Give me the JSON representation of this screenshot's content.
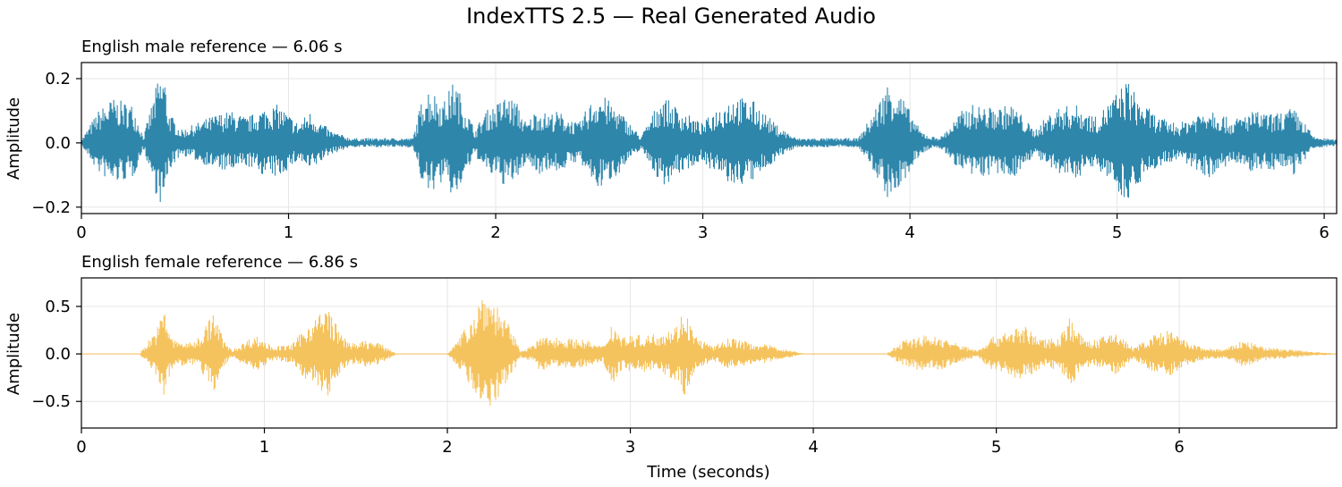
{
  "figure_title": "IndexTTS 2.5 — Real Generated Audio",
  "x_axis_label": "Time (seconds)",
  "chart_data": [
    {
      "type": "line",
      "title": "English male reference — 6.06 s",
      "ylabel": "Amplitude",
      "xlabel": "",
      "duration_s": 6.06,
      "xlim": [
        0,
        6.06
      ],
      "ylim": [
        -0.22,
        0.25
      ],
      "x_ticks": [
        0,
        1,
        2,
        3,
        4,
        5,
        6
      ],
      "x_tick_labels": [
        "0",
        "1",
        "2",
        "3",
        "4",
        "5",
        "6"
      ],
      "y_ticks": [
        0.2,
        0.0,
        -0.2
      ],
      "y_tick_labels": [
        "0.2",
        "0.0",
        "−0.2"
      ],
      "grid": true,
      "color": "#2e86ab",
      "envelope": {
        "time_s": [
          0.0,
          0.08,
          0.15,
          0.25,
          0.3,
          0.37,
          0.4,
          0.42,
          0.48,
          0.55,
          0.65,
          0.72,
          0.8,
          0.88,
          0.95,
          1.05,
          1.1,
          1.2,
          1.3,
          1.35,
          1.4,
          1.5,
          1.6,
          1.66,
          1.7,
          1.75,
          1.8,
          1.85,
          1.9,
          1.95,
          2.0,
          2.05,
          2.1,
          2.15,
          2.2,
          2.25,
          2.3,
          2.4,
          2.45,
          2.5,
          2.6,
          2.7,
          2.75,
          2.8,
          2.9,
          3.0,
          3.05,
          3.15,
          3.25,
          3.35,
          3.45,
          3.55,
          3.65,
          3.75,
          3.8,
          3.85,
          3.9,
          3.95,
          4.0,
          4.05,
          4.1,
          4.15,
          4.25,
          4.3,
          4.4,
          4.5,
          4.6,
          4.7,
          4.8,
          4.9,
          5.0,
          5.05,
          5.1,
          5.15,
          5.2,
          5.3,
          5.4,
          5.45,
          5.55,
          5.65,
          5.75,
          5.85,
          5.9,
          5.95,
          6.0,
          6.06
        ],
        "peak": [
          0.01,
          0.1,
          0.14,
          0.12,
          0.02,
          0.2,
          0.22,
          0.1,
          0.04,
          0.06,
          0.09,
          0.1,
          0.08,
          0.11,
          0.12,
          0.06,
          0.1,
          0.04,
          0.015,
          0.015,
          0.015,
          0.015,
          0.015,
          0.18,
          0.16,
          0.13,
          0.2,
          0.12,
          0.04,
          0.1,
          0.12,
          0.15,
          0.13,
          0.06,
          0.11,
          0.09,
          0.1,
          0.06,
          0.12,
          0.16,
          0.1,
          0.02,
          0.08,
          0.15,
          0.1,
          0.06,
          0.1,
          0.15,
          0.13,
          0.06,
          0.015,
          0.015,
          0.015,
          0.015,
          0.07,
          0.13,
          0.2,
          0.16,
          0.1,
          0.04,
          0.02,
          0.02,
          0.1,
          0.12,
          0.11,
          0.12,
          0.04,
          0.11,
          0.12,
          0.08,
          0.16,
          0.2,
          0.14,
          0.11,
          0.08,
          0.06,
          0.1,
          0.12,
          0.07,
          0.1,
          0.09,
          0.11,
          0.07,
          0.02,
          0.015,
          0.01
        ]
      }
    },
    {
      "type": "line",
      "title": "English female reference — 6.86 s",
      "ylabel": "Amplitude",
      "xlabel": "Time (seconds)",
      "duration_s": 6.86,
      "xlim": [
        0,
        6.86
      ],
      "ylim": [
        -0.78,
        0.8
      ],
      "x_ticks": [
        0,
        1,
        2,
        3,
        4,
        5,
        6
      ],
      "x_tick_labels": [
        "0",
        "1",
        "2",
        "3",
        "4",
        "5",
        "6"
      ],
      "y_ticks": [
        0.5,
        0.0,
        -0.5
      ],
      "y_tick_labels": [
        "0.5",
        "0.0",
        "−0.5"
      ],
      "grid": true,
      "color": "#f5c35e",
      "envelope": {
        "time_s": [
          0.0,
          0.32,
          0.35,
          0.42,
          0.45,
          0.5,
          0.6,
          0.65,
          0.72,
          0.78,
          0.82,
          0.95,
          1.05,
          1.15,
          1.25,
          1.35,
          1.42,
          1.5,
          1.55,
          1.62,
          1.68,
          1.72,
          2.0,
          2.06,
          2.12,
          2.2,
          2.28,
          2.35,
          2.4,
          2.48,
          2.5,
          2.6,
          2.75,
          2.85,
          2.9,
          2.95,
          3.1,
          3.25,
          3.3,
          3.35,
          3.45,
          3.55,
          3.65,
          3.75,
          3.85,
          3.95,
          4.4,
          4.5,
          4.6,
          4.7,
          4.8,
          4.9,
          4.95,
          5.05,
          5.15,
          5.25,
          5.35,
          5.4,
          5.48,
          5.55,
          5.65,
          5.75,
          5.85,
          5.95,
          6.05,
          6.15,
          6.25,
          6.35,
          6.45,
          6.55,
          6.65,
          6.75,
          6.86
        ],
        "peak": [
          0.005,
          0.005,
          0.1,
          0.3,
          0.5,
          0.15,
          0.12,
          0.2,
          0.45,
          0.15,
          0.04,
          0.2,
          0.08,
          0.1,
          0.35,
          0.5,
          0.2,
          0.1,
          0.15,
          0.12,
          0.06,
          0.005,
          0.005,
          0.15,
          0.35,
          0.7,
          0.5,
          0.25,
          0.04,
          0.1,
          0.18,
          0.18,
          0.15,
          0.08,
          0.35,
          0.2,
          0.2,
          0.3,
          0.5,
          0.2,
          0.08,
          0.18,
          0.12,
          0.1,
          0.05,
          0.005,
          0.005,
          0.15,
          0.2,
          0.18,
          0.1,
          0.04,
          0.15,
          0.25,
          0.3,
          0.15,
          0.2,
          0.4,
          0.15,
          0.15,
          0.25,
          0.06,
          0.2,
          0.25,
          0.12,
          0.06,
          0.05,
          0.15,
          0.08,
          0.06,
          0.04,
          0.02,
          0.005
        ]
      }
    }
  ]
}
